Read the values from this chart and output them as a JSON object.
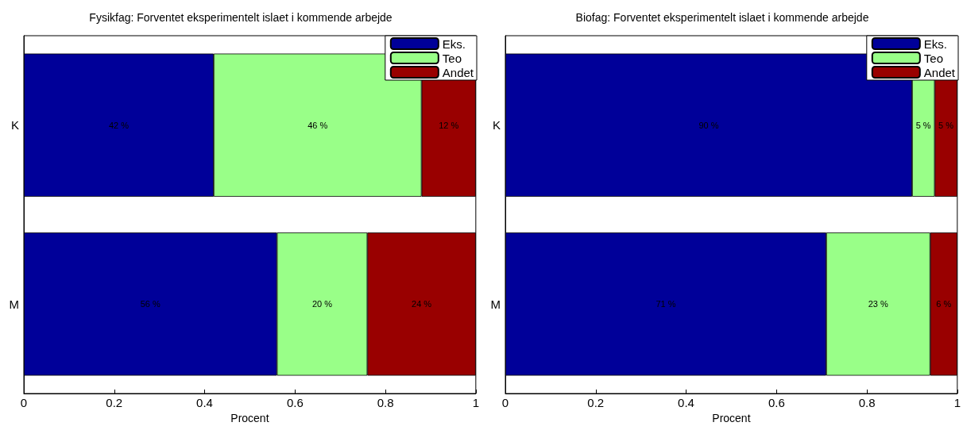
{
  "chart_data": [
    {
      "type": "bar",
      "title": "Fysikfag: Forventet eksperimentelt islaet i kommende arbejde",
      "xlabel": "Procent",
      "categories": [
        "K",
        "M"
      ],
      "orientation": "horizontal",
      "stacked": true,
      "xlim": [
        0,
        1
      ],
      "xticks": [
        0,
        0.2,
        0.4,
        0.6,
        0.8,
        1
      ],
      "grid": false,
      "legend": "top right",
      "series": [
        {
          "name": "Eks.",
          "color": "#000099",
          "values": [
            0.42,
            0.56
          ],
          "value_labels": [
            "42 %",
            "56 %"
          ]
        },
        {
          "name": "Teo",
          "color": "#99ff88",
          "values": [
            0.46,
            0.2
          ],
          "value_labels": [
            "46 %",
            "20 %"
          ]
        },
        {
          "name": "Andet",
          "color": "#990000",
          "values": [
            0.12,
            0.24
          ],
          "value_labels": [
            "12 %",
            "24 %"
          ]
        }
      ]
    },
    {
      "type": "bar",
      "title": "Biofag: Forventet eksperimentelt islaet i kommende arbejde",
      "xlabel": "Procent",
      "categories": [
        "K",
        "M"
      ],
      "orientation": "horizontal",
      "stacked": true,
      "xlim": [
        0,
        1
      ],
      "xticks": [
        0,
        0.2,
        0.4,
        0.6,
        0.8,
        1
      ],
      "grid": false,
      "legend": "top right",
      "series": [
        {
          "name": "Eks.",
          "color": "#000099",
          "values": [
            0.9,
            0.71
          ],
          "value_labels": [
            "90 %",
            "71 %"
          ]
        },
        {
          "name": "Teo",
          "color": "#99ff88",
          "values": [
            0.05,
            0.23
          ],
          "value_labels": [
            "5 %",
            "23 %"
          ]
        },
        {
          "name": "Andet",
          "color": "#990000",
          "values": [
            0.05,
            0.06
          ],
          "value_labels": [
            "5 %",
            "6 %"
          ]
        }
      ]
    }
  ]
}
